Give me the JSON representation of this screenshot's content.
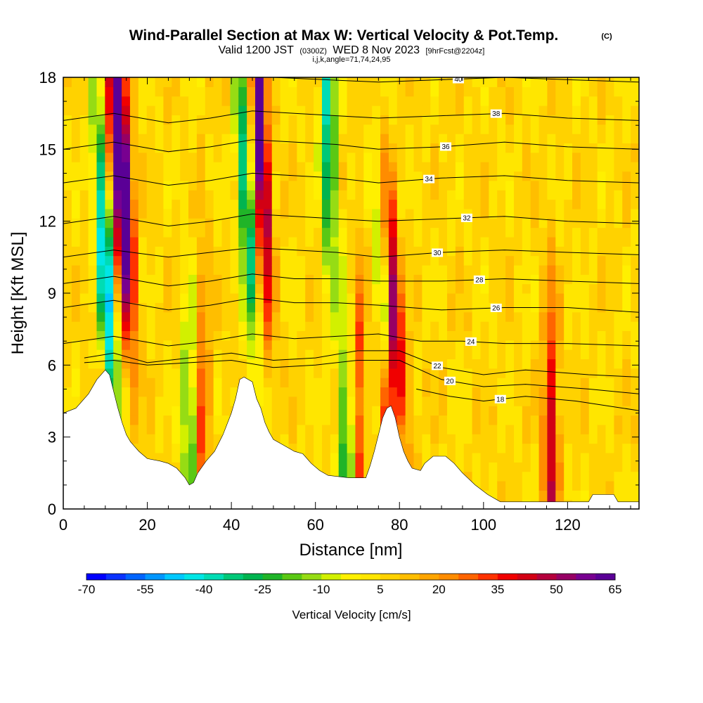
{
  "header": {
    "title": "Wind-Parallel Section at Max W: Vertical Velocity & Pot.Temp.",
    "copyright": "(C)",
    "valid_prefix": "Valid 1200 JST",
    "valid_utc": "(0300Z)",
    "valid_date": "WED 8 Nov 2023",
    "forecast": "[9hrFcst@2204z]",
    "indices": "i,j,k,angle=71,74,24,95"
  },
  "chart_data": {
    "type": "heatmap",
    "title": "Wind-Parallel Section at Max W: Vertical Velocity & Pot.Temp.",
    "xlabel": "Distance [nm]",
    "ylabel": "Height [Kft MSL]",
    "xlim": [
      0,
      137
    ],
    "ylim": [
      0,
      18
    ],
    "x_ticks": [
      "0",
      "20",
      "40",
      "60",
      "80",
      "100",
      "120"
    ],
    "y_ticks": [
      "0",
      "3",
      "6",
      "9",
      "12",
      "15",
      "18"
    ],
    "terrain_kft": [
      [
        0,
        4.0
      ],
      [
        3,
        4.2
      ],
      [
        6,
        4.8
      ],
      [
        8,
        5.4
      ],
      [
        10,
        5.8
      ],
      [
        11,
        5.6
      ],
      [
        12,
        4.9
      ],
      [
        13,
        4.2
      ],
      [
        14,
        3.6
      ],
      [
        15,
        3.1
      ],
      [
        16,
        2.8
      ],
      [
        17,
        2.6
      ],
      [
        18,
        2.4
      ],
      [
        20,
        2.1
      ],
      [
        23,
        2.0
      ],
      [
        25,
        1.9
      ],
      [
        27,
        1.7
      ],
      [
        29,
        1.3
      ],
      [
        30,
        1.0
      ],
      [
        31,
        1.1
      ],
      [
        32,
        1.5
      ],
      [
        34,
        2.0
      ],
      [
        36,
        2.4
      ],
      [
        38,
        3.1
      ],
      [
        40,
        4.0
      ],
      [
        41,
        4.6
      ],
      [
        42,
        5.4
      ],
      [
        43,
        5.5
      ],
      [
        45,
        5.3
      ],
      [
        46,
        4.6
      ],
      [
        47,
        4.2
      ],
      [
        48,
        3.6
      ],
      [
        49,
        3.2
      ],
      [
        50,
        2.9
      ],
      [
        52,
        2.7
      ],
      [
        53,
        2.6
      ],
      [
        55,
        2.4
      ],
      [
        57,
        2.3
      ],
      [
        59,
        1.9
      ],
      [
        61,
        1.6
      ],
      [
        63,
        1.4
      ],
      [
        68,
        1.3
      ],
      [
        72,
        1.3
      ],
      [
        73,
        1.8
      ],
      [
        74,
        2.4
      ],
      [
        75,
        3.1
      ],
      [
        76,
        3.8
      ],
      [
        77,
        4.2
      ],
      [
        78,
        4.3
      ],
      [
        79,
        3.8
      ],
      [
        80,
        3.0
      ],
      [
        81,
        2.4
      ],
      [
        82,
        2.0
      ],
      [
        83,
        1.7
      ],
      [
        85,
        1.6
      ],
      [
        86,
        1.9
      ],
      [
        88,
        2.2
      ],
      [
        91,
        2.2
      ],
      [
        93,
        1.9
      ],
      [
        95,
        1.5
      ],
      [
        98,
        1.0
      ],
      [
        101,
        0.6
      ],
      [
        104,
        0.3
      ],
      [
        110,
        0.3
      ],
      [
        125,
        0.3
      ],
      [
        126,
        0.6
      ],
      [
        131,
        0.6
      ],
      [
        132,
        0.3
      ],
      [
        137,
        0.3
      ]
    ],
    "updrafts": [
      {
        "x": 12.5,
        "z": 15.5,
        "tilt": -0.3,
        "amp": 55
      },
      {
        "x": 15.0,
        "z": 13.0,
        "tilt": -0.2,
        "amp": 45
      },
      {
        "x": 47.0,
        "z": 15.0,
        "tilt": -0.25,
        "amp": 65
      },
      {
        "x": 79.0,
        "z": 7.5,
        "tilt": -0.45,
        "amp": 45
      },
      {
        "x": 78.0,
        "z": 5.0,
        "tilt": 0.0,
        "amp": 45
      },
      {
        "x": 116.0,
        "z": 2.5,
        "tilt": 0.0,
        "amp": 40
      },
      {
        "x": 33.0,
        "z": 4.0,
        "tilt": 0.0,
        "amp": 25
      },
      {
        "x": 70.0,
        "z": 4.0,
        "tilt": 0.0,
        "amp": 30
      }
    ],
    "downdrafts": [
      {
        "x": 10.0,
        "z": 10.0,
        "tilt": -0.3,
        "amp": -60
      },
      {
        "x": 43.5,
        "z": 13.0,
        "tilt": -0.28,
        "amp": -45
      },
      {
        "x": 63.0,
        "z": 16.0,
        "tilt": -0.1,
        "amp": -45
      },
      {
        "x": 77.5,
        "z": 7.5,
        "tilt": -0.45,
        "amp": -40
      },
      {
        "x": 67.5,
        "z": 1.8,
        "tilt": 0.0,
        "amp": -40
      },
      {
        "x": 30.0,
        "z": 3.0,
        "tilt": 0.0,
        "amp": -30
      }
    ],
    "theta_contours": [
      {
        "level": 18,
        "label": "18",
        "label_x": 104,
        "points": [
          [
            84,
            5.0
          ],
          [
            92,
            4.7
          ],
          [
            100,
            4.5
          ],
          [
            110,
            4.7
          ],
          [
            122,
            4.5
          ],
          [
            137,
            4.1
          ]
        ]
      },
      {
        "level": 20,
        "label": "20",
        "label_x": 92,
        "points": [
          [
            5,
            6.1
          ],
          [
            12,
            6.2
          ],
          [
            20,
            6.0
          ],
          [
            30,
            6.1
          ],
          [
            40,
            6.2
          ],
          [
            50,
            5.9
          ],
          [
            60,
            6.0
          ],
          [
            70,
            6.2
          ],
          [
            80,
            6.2
          ],
          [
            90,
            5.4
          ],
          [
            100,
            5.1
          ],
          [
            110,
            5.2
          ],
          [
            125,
            5.0
          ],
          [
            137,
            4.8
          ]
        ]
      },
      {
        "level": 22,
        "label": "22",
        "label_x": 89,
        "points": [
          [
            5,
            6.3
          ],
          [
            12,
            6.5
          ],
          [
            20,
            6.1
          ],
          [
            30,
            6.3
          ],
          [
            40,
            6.5
          ],
          [
            50,
            6.2
          ],
          [
            60,
            6.3
          ],
          [
            70,
            6.6
          ],
          [
            80,
            6.6
          ],
          [
            90,
            5.9
          ],
          [
            100,
            5.6
          ],
          [
            110,
            5.8
          ],
          [
            125,
            5.6
          ],
          [
            137,
            5.5
          ]
        ]
      },
      {
        "level": 24,
        "label": "24",
        "label_x": 97,
        "points": [
          [
            0,
            6.9
          ],
          [
            12,
            7.2
          ],
          [
            25,
            6.8
          ],
          [
            35,
            7.0
          ],
          [
            45,
            7.3
          ],
          [
            55,
            7.1
          ],
          [
            65,
            7.2
          ],
          [
            75,
            7.3
          ],
          [
            85,
            7.0
          ],
          [
            95,
            7.0
          ],
          [
            105,
            6.9
          ],
          [
            120,
            6.9
          ],
          [
            137,
            6.8
          ]
        ]
      },
      {
        "level": 26,
        "label": "26",
        "label_x": 103,
        "points": [
          [
            0,
            8.4
          ],
          [
            12,
            8.7
          ],
          [
            25,
            8.3
          ],
          [
            35,
            8.5
          ],
          [
            45,
            8.8
          ],
          [
            55,
            8.6
          ],
          [
            65,
            8.6
          ],
          [
            75,
            8.5
          ],
          [
            90,
            8.3
          ],
          [
            105,
            8.4
          ],
          [
            120,
            8.4
          ],
          [
            137,
            8.2
          ]
        ]
      },
      {
        "level": 28,
        "label": "28",
        "label_x": 99,
        "points": [
          [
            0,
            9.4
          ],
          [
            12,
            9.7
          ],
          [
            25,
            9.3
          ],
          [
            35,
            9.5
          ],
          [
            45,
            9.8
          ],
          [
            55,
            9.6
          ],
          [
            65,
            9.6
          ],
          [
            75,
            9.5
          ],
          [
            90,
            9.5
          ],
          [
            105,
            9.6
          ],
          [
            120,
            9.5
          ],
          [
            137,
            9.4
          ]
        ]
      },
      {
        "level": 30,
        "label": "30",
        "label_x": 89,
        "points": [
          [
            0,
            10.5
          ],
          [
            12,
            10.8
          ],
          [
            25,
            10.5
          ],
          [
            35,
            10.7
          ],
          [
            45,
            10.9
          ],
          [
            55,
            10.8
          ],
          [
            65,
            10.7
          ],
          [
            75,
            10.5
          ],
          [
            90,
            10.7
          ],
          [
            105,
            10.8
          ],
          [
            120,
            10.7
          ],
          [
            137,
            10.6
          ]
        ]
      },
      {
        "level": 32,
        "label": "32",
        "label_x": 96,
        "points": [
          [
            0,
            11.9
          ],
          [
            12,
            12.2
          ],
          [
            25,
            11.8
          ],
          [
            35,
            12.0
          ],
          [
            45,
            12.3
          ],
          [
            55,
            12.2
          ],
          [
            65,
            12.1
          ],
          [
            75,
            12.0
          ],
          [
            90,
            12.1
          ],
          [
            105,
            12.2
          ],
          [
            120,
            12.0
          ],
          [
            137,
            11.9
          ]
        ]
      },
      {
        "level": 34,
        "label": "34",
        "label_x": 87,
        "points": [
          [
            0,
            13.6
          ],
          [
            12,
            13.9
          ],
          [
            25,
            13.5
          ],
          [
            35,
            13.7
          ],
          [
            45,
            14.0
          ],
          [
            55,
            13.9
          ],
          [
            65,
            13.8
          ],
          [
            75,
            13.6
          ],
          [
            90,
            13.8
          ],
          [
            105,
            13.9
          ],
          [
            120,
            13.7
          ],
          [
            137,
            13.6
          ]
        ]
      },
      {
        "level": 36,
        "label": "36",
        "label_x": 91,
        "points": [
          [
            0,
            15.0
          ],
          [
            12,
            15.3
          ],
          [
            25,
            14.9
          ],
          [
            35,
            15.1
          ],
          [
            45,
            15.4
          ],
          [
            55,
            15.3
          ],
          [
            65,
            15.2
          ],
          [
            75,
            15.0
          ],
          [
            90,
            15.1
          ],
          [
            105,
            15.3
          ],
          [
            120,
            15.1
          ],
          [
            137,
            15.0
          ]
        ]
      },
      {
        "level": 38,
        "label": "38",
        "label_x": 103,
        "points": [
          [
            0,
            16.2
          ],
          [
            12,
            16.5
          ],
          [
            25,
            16.1
          ],
          [
            35,
            16.3
          ],
          [
            45,
            16.6
          ],
          [
            55,
            16.5
          ],
          [
            65,
            16.4
          ],
          [
            75,
            16.3
          ],
          [
            90,
            16.4
          ],
          [
            105,
            16.5
          ],
          [
            120,
            16.3
          ],
          [
            137,
            16.2
          ]
        ]
      },
      {
        "level": 40,
        "label": "40",
        "label_x": 94,
        "points": [
          [
            50,
            18.0
          ],
          [
            75,
            17.8
          ],
          [
            90,
            17.9
          ],
          [
            105,
            18.0
          ],
          [
            120,
            17.9
          ],
          [
            137,
            17.8
          ]
        ]
      }
    ],
    "colorbar": {
      "label": "Vertical Velocity [cm/s]",
      "tick_labels": [
        "-70",
        "-55",
        "-40",
        "-25",
        "-10",
        "5",
        "20",
        "35",
        "50",
        "65"
      ],
      "bounds": [
        -70,
        65
      ],
      "colors": [
        "#0000ff",
        "#0a32ff",
        "#0064ff",
        "#0096ff",
        "#00c8ff",
        "#00e6e6",
        "#00dcb4",
        "#00c878",
        "#00b450",
        "#20b428",
        "#5ac814",
        "#96dc14",
        "#d2f000",
        "#fff000",
        "#ffe600",
        "#ffd200",
        "#ffbe00",
        "#ffa500",
        "#ff8c00",
        "#ff6400",
        "#ff3200",
        "#f00000",
        "#d20014",
        "#b4003c",
        "#960064",
        "#780090",
        "#5a0096"
      ]
    }
  }
}
